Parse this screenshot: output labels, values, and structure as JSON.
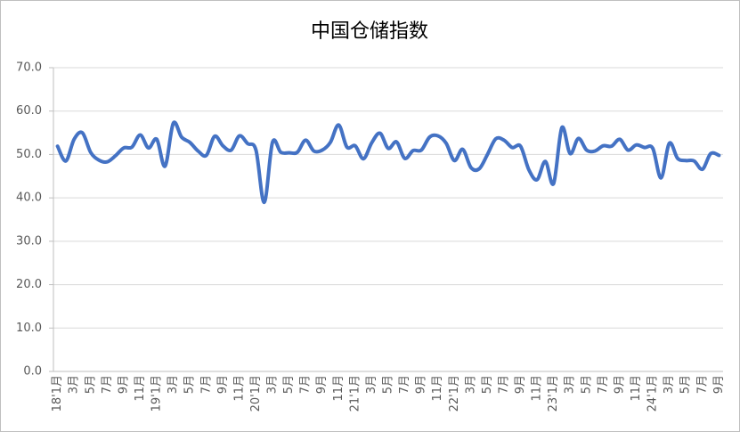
{
  "chart_data": {
    "type": "line",
    "title": "中国仓储指数",
    "categories": [
      "18'1月",
      null,
      "3月",
      null,
      "5月",
      null,
      "7月",
      null,
      "9月",
      null,
      "11月",
      null,
      "19'1月",
      null,
      "3月",
      null,
      "5月",
      null,
      "7月",
      null,
      "9月",
      null,
      "11月",
      null,
      "20'1月",
      null,
      "3月",
      null,
      "5月",
      null,
      "7月",
      null,
      "9月",
      null,
      "11月",
      null,
      "21'1月",
      null,
      "3月",
      null,
      "5月",
      null,
      "7月",
      null,
      "9月",
      null,
      "11月",
      null,
      "22'1月",
      null,
      "3月",
      null,
      "5月",
      null,
      "7月",
      null,
      "9月",
      null,
      "11月",
      null,
      "23'1月",
      null,
      "3月",
      null,
      "5月",
      null,
      "7月",
      null,
      "9月",
      null,
      "11月",
      null,
      "24'1月",
      null,
      "3月",
      null,
      "5月",
      null,
      "7月",
      null,
      "9月"
    ],
    "values": [
      51.9,
      48.5,
      53.5,
      55.0,
      50.5,
      48.7,
      48.3,
      49.7,
      51.5,
      51.7,
      54.5,
      51.5,
      53.5,
      47.3,
      57.2,
      54.0,
      52.8,
      50.8,
      49.8,
      54.2,
      52.0,
      51.0,
      54.3,
      52.5,
      51.0,
      39.0,
      52.8,
      50.5,
      50.4,
      50.5,
      53.3,
      50.8,
      51.0,
      52.8,
      56.8,
      51.7,
      52.0,
      49.0,
      52.7,
      54.9,
      51.4,
      52.9,
      49.1,
      50.9,
      51.0,
      54.0,
      54.3,
      52.6,
      48.6,
      51.2,
      47.0,
      46.7,
      50.0,
      53.6,
      53.3,
      51.6,
      51.9,
      46.5,
      44.2,
      48.4,
      43.3,
      56.2,
      50.2,
      53.7,
      51.0,
      50.8,
      52.0,
      51.9,
      53.5,
      51.0,
      52.2,
      51.6,
      51.4,
      44.6,
      52.6,
      49.1,
      48.6,
      48.5,
      46.6,
      50.2,
      49.8
    ],
    "color": "#4472c4",
    "ylim": [
      0,
      70
    ],
    "yticks": [
      {
        "value": 0,
        "label": "0.0"
      },
      {
        "value": 10,
        "label": "10.0"
      },
      {
        "value": 20,
        "label": "20.0"
      },
      {
        "value": 30,
        "label": "30.0"
      },
      {
        "value": 40,
        "label": "40.0"
      },
      {
        "value": 50,
        "label": "50.0"
      },
      {
        "value": 60,
        "label": "60.0"
      },
      {
        "value": 70,
        "label": "70.0"
      }
    ],
    "grid": true
  }
}
